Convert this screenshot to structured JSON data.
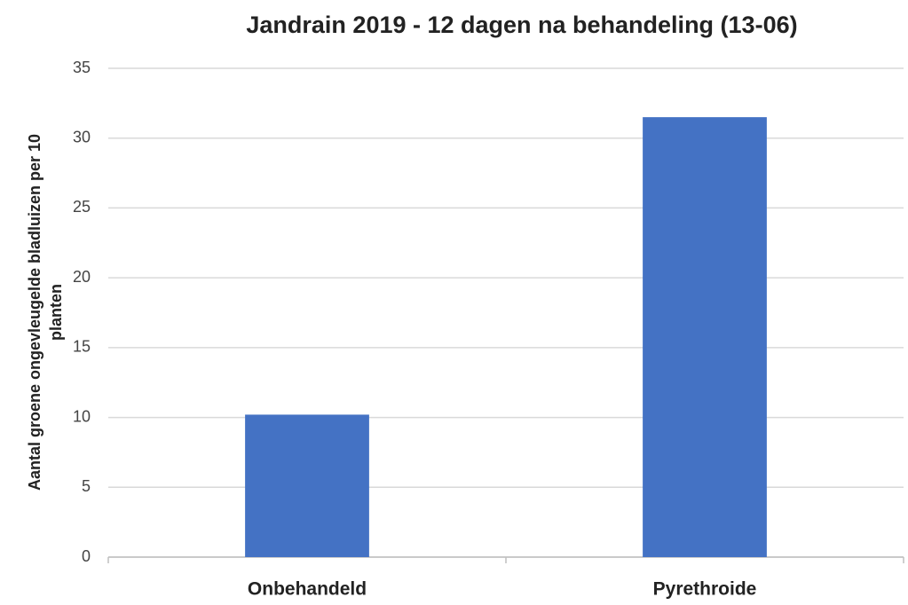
{
  "chart_data": {
    "type": "bar",
    "title": "Jandrain 2019 - 12 dagen na behandeling (13-06)",
    "ylabel": [
      "Aantal groene ongevleugelde bladluizen per 10",
      "planten"
    ],
    "categories": [
      "Onbehandeld",
      "Pyrethroide"
    ],
    "values": [
      10.2,
      31.5
    ],
    "color": "#4472c4",
    "ylim": [
      0,
      35
    ],
    "yticks": [
      0,
      5,
      10,
      15,
      20,
      25,
      30,
      35
    ],
    "grid": true
  }
}
